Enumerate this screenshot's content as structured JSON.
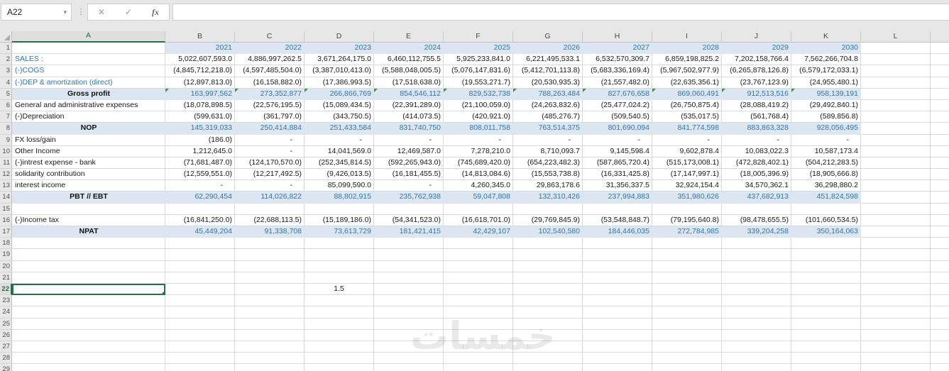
{
  "toolbar": {
    "name_box": "A22",
    "formula_bar": "",
    "cancel_icon": "✕",
    "enter_icon": "✓",
    "fx_icon": "fx",
    "separator_icon": "⋮",
    "namebox_arrow": "▾"
  },
  "colors": {
    "selection_green": "#217346",
    "band_blue": "#DCE6F1",
    "value_blue": "#2E75B6",
    "flag_green": "#2E9E2E",
    "header_gray": "#E7E7E7"
  },
  "watermark": "خمسات",
  "sheet": {
    "columns": [
      "A",
      "B",
      "C",
      "D",
      "E",
      "F",
      "G",
      "H",
      "I",
      "J",
      "K",
      "L"
    ],
    "selected_cell": "A22",
    "rows": [
      {
        "num": 1,
        "style": "years",
        "label": "",
        "values": [
          "2021",
          "2022",
          "2023",
          "2024",
          "2025",
          "2026",
          "2027",
          "2028",
          "2029",
          "2030"
        ]
      },
      {
        "num": 2,
        "style": "blue",
        "label": "SALES :",
        "values": [
          "5,022,607,593.0",
          "4,886,997,262.5",
          "3,671,264,175.0",
          "6,460,112,755.5",
          "5,925,233,841.0",
          "6,221,495,533.1",
          "6,532,570,309.7",
          "6,859,198,825.2",
          "7,202,158,766.4",
          "7,562,266,704.8"
        ]
      },
      {
        "num": 3,
        "style": "blue",
        "label": "(-)COGS",
        "values": [
          "(4,845,712,218.0)",
          "(4,597,485,504.0)",
          "(3,387,010,413.0)",
          "(5,588,048,005.5)",
          "(5,076,147,831.6)",
          "(5,412,701,113.8)",
          "(5,683,336,169.4)",
          "(5,967,502,977.9)",
          "(6,265,878,126.8)",
          "(6,579,172,033.1)"
        ]
      },
      {
        "num": 4,
        "style": "blue",
        "label": "(-)DEP & amortization (direct)",
        "values": [
          "(12,897,813.0)",
          "(16,158,882.0)",
          "(17,386,993.5)",
          "(17,518,638.0)",
          "(19,553,271.7)",
          "(20,530,935.3)",
          "(21,557,482.0)",
          "(22,635,356.1)",
          "(23,767,123.9)",
          "(24,955,480.1)"
        ]
      },
      {
        "num": 5,
        "style": "band",
        "flags": true,
        "label": "Gross profit",
        "values": [
          "163,997,562",
          "273,352,877",
          "266,866,769",
          "854,546,112",
          "829,532,738",
          "788,263,484",
          "827,676,658",
          "869,060,491",
          "912,513,516",
          "958,139,191"
        ]
      },
      {
        "num": 6,
        "style": "plain",
        "label": "General and administrative expenses",
        "values": [
          "(18,078,898.5)",
          "(22,576,195.5)",
          "(15,089,434.5)",
          "(22,391,289.0)",
          "(21,100,059.0)",
          "(24,263,832.6)",
          "(25,477,024.2)",
          "(26,750,875.4)",
          "(28,088,419.2)",
          "(29,492,840.1)"
        ]
      },
      {
        "num": 7,
        "style": "plain",
        "label": "(-)Depreciation",
        "values": [
          "(599,631.0)",
          "(361,797.0)",
          "(343,750.5)",
          "(414,073.5)",
          "(420,921.0)",
          "(485,276.7)",
          "(509,540.5)",
          "(535,017.5)",
          "(561,768.4)",
          "(589,856.8)"
        ]
      },
      {
        "num": 8,
        "style": "band",
        "label": "NOP",
        "values": [
          "145,319,033",
          "250,414,884",
          "251,433,584",
          "831,740,750",
          "808,011,758",
          "763,514,375",
          "801,690,094",
          "841,774,598",
          "883,863,328",
          "928,056,495"
        ]
      },
      {
        "num": 9,
        "style": "plain",
        "label": "FX loss/gain",
        "values": [
          "(186.0)",
          "-",
          "-",
          "-",
          "-",
          "-",
          "-",
          "-",
          "-",
          "-"
        ]
      },
      {
        "num": 10,
        "style": "plain",
        "label": "Other Income",
        "values": [
          "1,212,645.0",
          "-",
          "14,041,569.0",
          "12,469,587.0",
          "7,278,210.0",
          "8,710,093.7",
          "9,145,598.4",
          "9,602,878.4",
          "10,083,022.3",
          "10,587,173.4"
        ]
      },
      {
        "num": 11,
        "style": "plain",
        "label": "(-)intrest expense - bank",
        "values": [
          "(71,681,487.0)",
          "(124,170,570.0)",
          "(252,345,814.5)",
          "(592,265,943.0)",
          "(745,689,420.0)",
          "(654,223,482.3)",
          "(587,865,720.4)",
          "(515,173,008.1)",
          "(472,828,402.1)",
          "(504,212,283.5)"
        ]
      },
      {
        "num": 12,
        "style": "plain",
        "label": "solidarity contribution",
        "values": [
          "(12,559,551.0)",
          "(12,217,492.5)",
          "(9,426,013.5)",
          "(16,181,455.5)",
          "(14,813,084.6)",
          "(15,553,738.8)",
          "(16,331,425.8)",
          "(17,147,997.1)",
          "(18,005,396.9)",
          "(18,905,666.8)"
        ]
      },
      {
        "num": 13,
        "style": "plain",
        "label": "interest income",
        "values": [
          "-",
          "-",
          "85,099,590.0",
          "-",
          "4,260,345.0",
          "29,863,178.6",
          "31,356,337.5",
          "32,924,154.4",
          "34,570,362.1",
          "36,298,880.2"
        ]
      },
      {
        "num": 14,
        "style": "band",
        "label": "PBT // EBT",
        "values": [
          "62,290,454",
          "114,026,822",
          "88,802,915",
          "235,762,938",
          "59,047,808",
          "132,310,426",
          "237,994,883",
          "351,980,626",
          "437,682,913",
          "451,824,598"
        ]
      },
      {
        "num": 15,
        "style": "empty"
      },
      {
        "num": 16,
        "style": "plain",
        "label": "(-)Income tax",
        "values": [
          "(16,841,250.0)",
          "(22,688,113.5)",
          "(15,189,186.0)",
          "(54,341,523.0)",
          "(16,618,701.0)",
          "(29,769,845.9)",
          "(53,548,848.7)",
          "(79,195,640.8)",
          "(98,478,655.5)",
          "(101,660,534.5)"
        ]
      },
      {
        "num": 17,
        "style": "band",
        "label": "NPAT",
        "values": [
          "45,449,204",
          "91,338,708",
          "73,613,729",
          "181,421,415",
          "42,429,107",
          "102,540,580",
          "184,446,035",
          "272,784,985",
          "339,204,258",
          "350,164,063"
        ]
      },
      {
        "num": 18,
        "style": "empty"
      },
      {
        "num": 19,
        "style": "empty"
      },
      {
        "num": 20,
        "style": "empty"
      },
      {
        "num": 21,
        "style": "empty"
      },
      {
        "num": 22,
        "style": "empty",
        "selected": true,
        "cells": {
          "D": "1.5"
        }
      },
      {
        "num": 23,
        "style": "empty"
      },
      {
        "num": 24,
        "style": "empty"
      },
      {
        "num": 25,
        "style": "empty"
      },
      {
        "num": 26,
        "style": "empty"
      },
      {
        "num": 27,
        "style": "empty"
      },
      {
        "num": 28,
        "style": "empty"
      },
      {
        "num": 29,
        "style": "empty"
      }
    ]
  }
}
